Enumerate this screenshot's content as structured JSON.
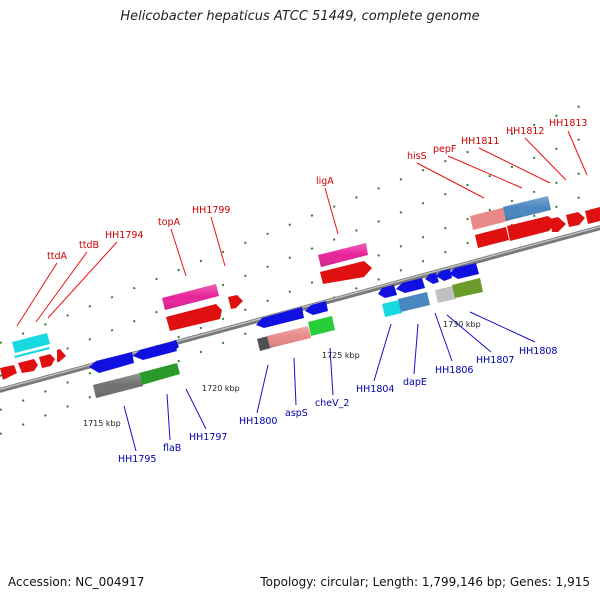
{
  "title": "Helicobacter hepaticus ATCC 51449, complete genome",
  "footer": {
    "accession": "Accession: NC_004917",
    "summary": "Topology: circular; Length: 1,799,146 bp; Genes: 1,915"
  },
  "colors": {
    "backbone": "#8a8a8a",
    "top_label": "#cc0000",
    "bottom_label": "#0000aa",
    "tick": "#2e7d32"
  },
  "scale_labels": [
    "1715 kbp",
    "1720 kbp",
    "1725 kbp",
    "1730 kbp"
  ],
  "top_labels": [
    "ttdA",
    "ttdB",
    "HH1794",
    "topA",
    "HH1799",
    "ligA",
    "hisS",
    "pepF",
    "HH1811",
    "HH1812",
    "HH1813"
  ],
  "bottom_labels": [
    "HH1795",
    "flaB",
    "HH1797",
    "HH1800",
    "aspS",
    "cheV_2",
    "HH1804",
    "dapE",
    "HH1806",
    "HH1807",
    "HH1808"
  ]
}
